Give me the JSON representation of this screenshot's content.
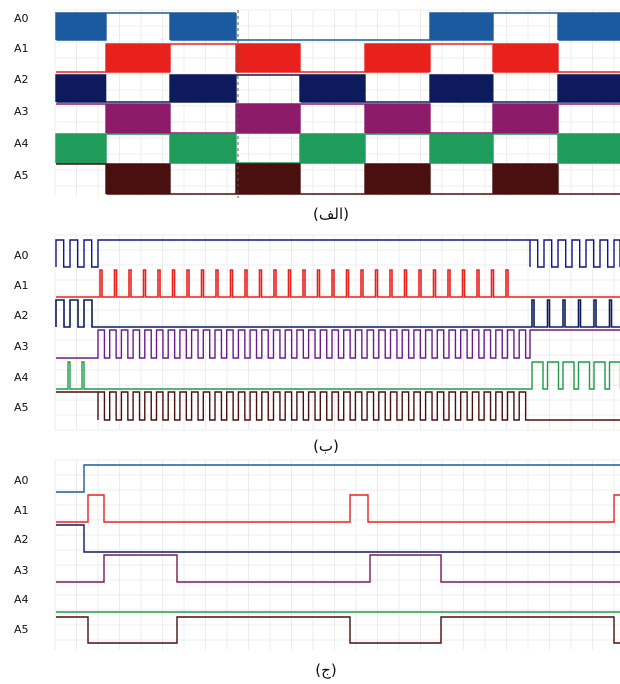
{
  "panels": [
    {
      "id": "a",
      "caption": "(الف)",
      "channel_labels": [
        "A0",
        "A1",
        "A2",
        "A3",
        "A4",
        "A5"
      ],
      "colors": [
        "#1b5a9e",
        "#e8211d",
        "#0d1b5c",
        "#8e1a6a",
        "#1f9b5a",
        "#4a0f0f"
      ],
      "marker": true
    },
    {
      "id": "b",
      "caption": "(ب)",
      "channel_labels": [
        "A0",
        "A1",
        "A2",
        "A3",
        "A4",
        "A5"
      ],
      "colors": [
        "#14148a",
        "#e8211d",
        "#0d1b5c",
        "#6a1b8c",
        "#1f9b4a",
        "#4a0f0f"
      ],
      "marker": false
    },
    {
      "id": "c",
      "caption": "(ج)",
      "channel_labels": [
        "A0",
        "A1",
        "A2",
        "A3",
        "A4",
        "A5"
      ],
      "colors": [
        "#1b5a9e",
        "#e8211d",
        "#0d1b5c",
        "#7a1a5a",
        "#1f9b4a",
        "#4a0f0f"
      ],
      "marker": false
    }
  ]
}
